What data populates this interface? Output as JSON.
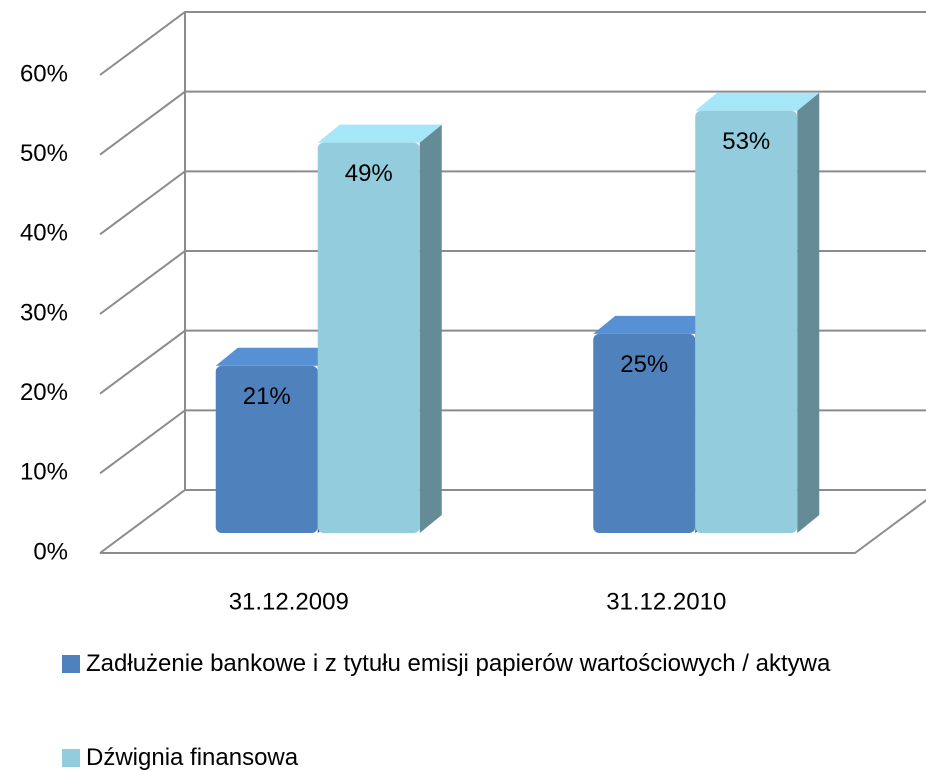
{
  "chart_data": {
    "type": "bar3d",
    "categories": [
      "31.12.2009",
      "31.12.2010"
    ],
    "series": [
      {
        "name": "Zadłużenie bankowe i z tytułu emisji papierów wartościowych / aktywa",
        "color": "#4f81bd",
        "values": [
          21,
          25
        ],
        "value_labels": [
          "21%",
          "25%"
        ]
      },
      {
        "name": "Dźwignia finansowa",
        "color": "#93cddd",
        "values": [
          49,
          53
        ],
        "value_labels": [
          "49%",
          "53%"
        ]
      }
    ],
    "ylim": [
      0,
      60
    ],
    "yticks": [
      {
        "value": 0,
        "label": "0%"
      },
      {
        "value": 10,
        "label": "10%"
      },
      {
        "value": 20,
        "label": "20%"
      },
      {
        "value": 30,
        "label": "30%"
      },
      {
        "value": 40,
        "label": "40%"
      },
      {
        "value": 50,
        "label": "50%"
      },
      {
        "value": 60,
        "label": "60%"
      }
    ],
    "grid": true,
    "legend": "bottom"
  }
}
